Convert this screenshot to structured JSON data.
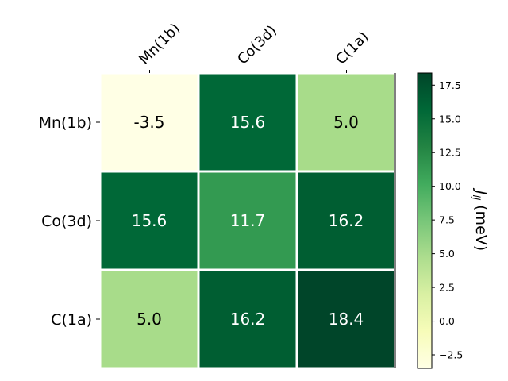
{
  "chart_data": {
    "type": "heatmap",
    "title": "",
    "x_categories": [
      "Mn(1b)",
      "Co(3d)",
      "C(1a)"
    ],
    "y_categories": [
      "Mn(1b)",
      "Co(3d)",
      "C(1a)"
    ],
    "values": [
      [
        -3.5,
        15.6,
        5.0
      ],
      [
        15.6,
        11.7,
        16.2
      ],
      [
        5.0,
        16.2,
        18.4
      ]
    ],
    "value_labels": [
      [
        "-3.5",
        "15.6",
        "5.0"
      ],
      [
        "15.6",
        "11.7",
        "16.2"
      ],
      [
        "5.0",
        "16.2",
        "18.4"
      ]
    ],
    "x_tick_position": "top",
    "colormap": "YlGn",
    "colormap_stops": [
      "#ffffe5",
      "#f7fcb9",
      "#d9f0a3",
      "#addd8e",
      "#78c679",
      "#41ab5d",
      "#238443",
      "#006837",
      "#004529"
    ],
    "cell_colors": [
      [
        "#ffffe5",
        "#006837",
        "#a8dc8a"
      ],
      [
        "#006837",
        "#339a51",
        "#005e32"
      ],
      [
        "#a8dc8a",
        "#005e32",
        "#004529"
      ]
    ],
    "colorbar": {
      "range": [
        -3.5,
        18.4
      ],
      "ticks": [
        -2.5,
        0.0,
        2.5,
        5.0,
        7.5,
        10.0,
        12.5,
        15.0,
        17.5
      ],
      "tick_labels": [
        "−2.5",
        "0.0",
        "2.5",
        "5.0",
        "7.5",
        "10.0",
        "12.5",
        "15.0",
        "17.5"
      ],
      "label_main": "J",
      "label_sub": "ij",
      "label_unit": " (meV)"
    }
  }
}
